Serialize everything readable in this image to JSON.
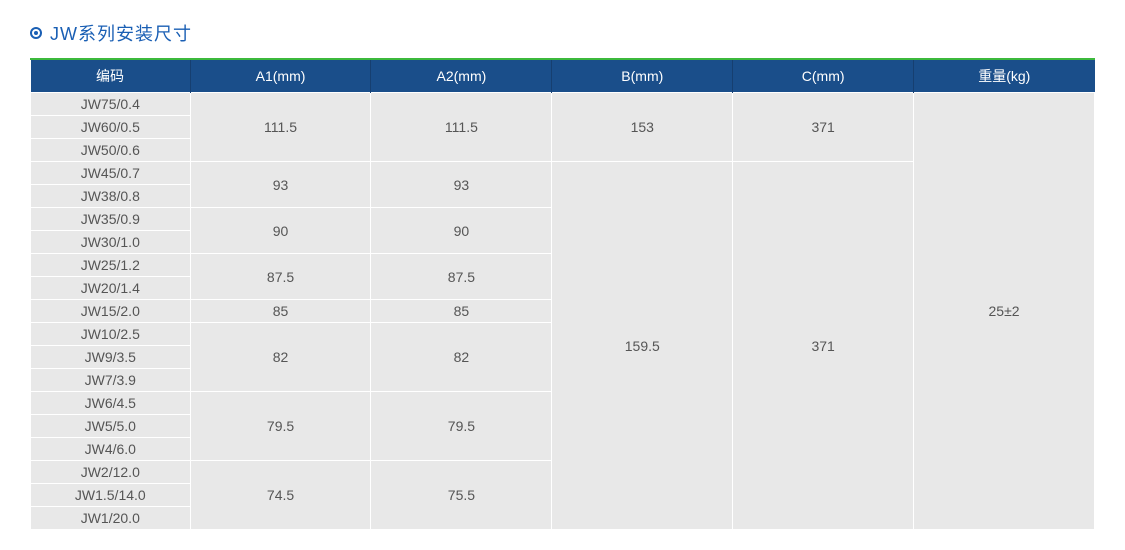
{
  "title": "JW系列安装尺寸",
  "colors": {
    "accent": "#1a5fb4",
    "header_bg": "#1a4e8a",
    "header_border": "#163f70",
    "green_line": "#3cb93c",
    "cell_bg": "#e8e8e8",
    "cell_border": "#ffffff",
    "text": "#555555",
    "header_text": "#ffffff"
  },
  "columns": {
    "code": "编码",
    "a1": "A1(mm)",
    "a2": "A2(mm)",
    "b": "B(mm)",
    "c": "C(mm)",
    "weight": "重量(kg)"
  },
  "codes": [
    "JW75/0.4",
    "JW60/0.5",
    "JW50/0.6",
    "JW45/0.7",
    "JW38/0.8",
    "JW35/0.9",
    "JW30/1.0",
    "JW25/1.2",
    "JW20/1.4",
    "JW15/2.0",
    "JW10/2.5",
    "JW9/3.5",
    "JW7/3.9",
    "JW6/4.5",
    "JW5/5.0",
    "JW4/6.0",
    "JW2/12.0",
    "JW1.5/14.0",
    "JW1/20.0"
  ],
  "groups": {
    "a1": [
      "111.5",
      "93",
      "90",
      "87.5",
      "85",
      "82",
      "79.5",
      "74.5"
    ],
    "a2": [
      "111.5",
      "93",
      "90",
      "87.5",
      "85",
      "82",
      "79.5",
      "75.5"
    ],
    "b": [
      "153",
      "159.5"
    ],
    "c": [
      "371",
      "371"
    ],
    "weight": [
      "25±2"
    ]
  }
}
